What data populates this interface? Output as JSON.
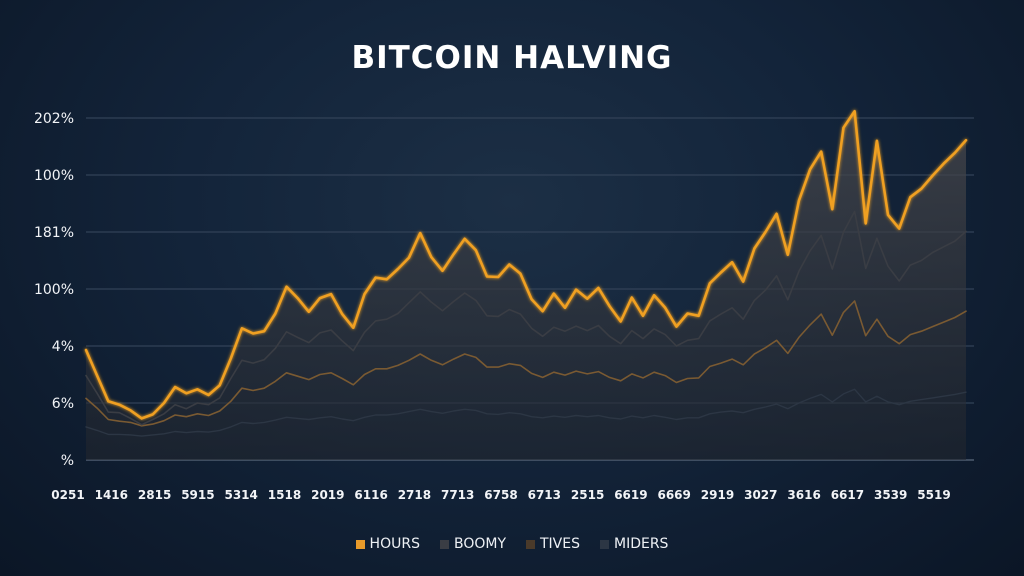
{
  "chart_data": {
    "type": "area",
    "title": "BITCOIN HALVING",
    "xlabel": "",
    "ylabel": "",
    "y_ticks": [
      "202%",
      "100%",
      "181%",
      "100%",
      "4%",
      "6%",
      "%"
    ],
    "x_ticks": [
      "0251",
      "1416",
      "2815",
      "5915",
      "5314",
      "1518",
      "2019",
      "6116",
      "2718",
      "7713",
      "6758",
      "6713",
      "2515",
      "6619",
      "6669",
      "2919",
      "3027",
      "3616",
      "6617",
      "3539",
      "5519"
    ],
    "ylim": [
      0,
      6
    ],
    "grid": true,
    "legend_position": "bottom",
    "x": [
      0,
      1,
      2,
      3,
      4,
      5,
      6,
      7,
      8,
      9,
      10,
      11,
      12,
      13,
      14,
      15,
      16,
      17,
      18,
      19,
      20,
      21,
      22,
      23,
      24,
      25,
      26,
      27,
      28,
      29,
      30,
      31,
      32,
      33,
      34,
      35,
      36,
      37,
      38,
      39,
      40,
      41,
      42,
      43,
      44,
      45,
      46,
      47,
      48,
      49,
      50,
      51,
      52,
      53,
      54,
      55,
      56,
      57,
      58,
      59,
      60,
      61,
      62,
      63,
      64,
      65,
      66,
      67,
      68,
      69,
      70,
      71,
      72,
      73,
      74,
      75,
      76,
      77,
      78,
      79
    ],
    "series": [
      {
        "name": "HOURS",
        "color": "#f0a020",
        "values": [
          1.93,
          1.48,
          1.03,
          0.97,
          0.87,
          0.73,
          0.8,
          1.0,
          1.28,
          1.17,
          1.24,
          1.14,
          1.31,
          1.78,
          2.31,
          2.22,
          2.26,
          2.57,
          3.04,
          2.84,
          2.6,
          2.84,
          2.91,
          2.56,
          2.32,
          2.91,
          3.2,
          3.17,
          3.35,
          3.55,
          3.98,
          3.56,
          3.32,
          3.61,
          3.88,
          3.68,
          3.22,
          3.21,
          3.43,
          3.27,
          2.82,
          2.61,
          2.92,
          2.67,
          2.99,
          2.83,
          3.02,
          2.7,
          2.43,
          2.85,
          2.53,
          2.89,
          2.67,
          2.34,
          2.57,
          2.53,
          3.1,
          3.29,
          3.47,
          3.13,
          3.71,
          4.0,
          4.32,
          3.6,
          4.55,
          5.1,
          5.41,
          4.4,
          5.83,
          6.12,
          4.15,
          5.6,
          4.3,
          4.06,
          4.61,
          4.76,
          4.99,
          5.2,
          5.39,
          5.61
        ]
      },
      {
        "name": "BOOMY",
        "color": "#3a3d44",
        "values": [
          1.48,
          1.17,
          0.84,
          0.83,
          0.73,
          0.62,
          0.71,
          0.81,
          0.97,
          0.9,
          1.0,
          0.97,
          1.09,
          1.43,
          1.75,
          1.7,
          1.76,
          1.96,
          2.25,
          2.15,
          2.06,
          2.23,
          2.28,
          2.09,
          1.92,
          2.24,
          2.44,
          2.47,
          2.57,
          2.76,
          2.95,
          2.77,
          2.62,
          2.78,
          2.93,
          2.8,
          2.53,
          2.52,
          2.64,
          2.56,
          2.31,
          2.17,
          2.33,
          2.26,
          2.35,
          2.27,
          2.36,
          2.17,
          2.04,
          2.27,
          2.13,
          2.3,
          2.2,
          2.0,
          2.1,
          2.13,
          2.44,
          2.56,
          2.67,
          2.47,
          2.8,
          2.98,
          3.23,
          2.81,
          3.31,
          3.67,
          3.94,
          3.35,
          4.0,
          4.36,
          3.36,
          3.89,
          3.4,
          3.14,
          3.42,
          3.5,
          3.64,
          3.74,
          3.84,
          4.01
        ]
      },
      {
        "name": "TIVES",
        "color": "#7a5a32",
        "values": [
          1.08,
          0.91,
          0.71,
          0.68,
          0.66,
          0.6,
          0.63,
          0.69,
          0.79,
          0.76,
          0.81,
          0.78,
          0.86,
          1.03,
          1.26,
          1.22,
          1.26,
          1.38,
          1.53,
          1.47,
          1.41,
          1.5,
          1.53,
          1.43,
          1.32,
          1.5,
          1.6,
          1.6,
          1.66,
          1.75,
          1.86,
          1.75,
          1.67,
          1.77,
          1.86,
          1.8,
          1.63,
          1.63,
          1.69,
          1.66,
          1.52,
          1.45,
          1.54,
          1.49,
          1.56,
          1.51,
          1.55,
          1.45,
          1.39,
          1.51,
          1.44,
          1.54,
          1.48,
          1.36,
          1.43,
          1.44,
          1.64,
          1.7,
          1.77,
          1.67,
          1.86,
          1.97,
          2.1,
          1.87,
          2.15,
          2.37,
          2.56,
          2.19,
          2.59,
          2.79,
          2.18,
          2.47,
          2.17,
          2.04,
          2.2,
          2.26,
          2.34,
          2.42,
          2.5,
          2.61
        ]
      },
      {
        "name": "MIDERS",
        "color": "#2c3644",
        "values": [
          0.58,
          0.52,
          0.45,
          0.45,
          0.44,
          0.42,
          0.44,
          0.46,
          0.5,
          0.48,
          0.5,
          0.49,
          0.52,
          0.58,
          0.66,
          0.64,
          0.66,
          0.7,
          0.75,
          0.73,
          0.71,
          0.74,
          0.76,
          0.72,
          0.69,
          0.75,
          0.79,
          0.79,
          0.81,
          0.85,
          0.89,
          0.85,
          0.82,
          0.86,
          0.89,
          0.87,
          0.81,
          0.8,
          0.83,
          0.81,
          0.76,
          0.74,
          0.77,
          0.75,
          0.78,
          0.76,
          0.78,
          0.74,
          0.72,
          0.77,
          0.74,
          0.78,
          0.75,
          0.71,
          0.74,
          0.74,
          0.81,
          0.84,
          0.86,
          0.83,
          0.89,
          0.93,
          0.98,
          0.9,
          1.0,
          1.08,
          1.15,
          1.02,
          1.16,
          1.24,
          1.02,
          1.12,
          1.02,
          0.97,
          1.03,
          1.06,
          1.09,
          1.12,
          1.15,
          1.19
        ]
      }
    ]
  },
  "legend": [
    {
      "label": "HOURS",
      "color": "#e89a2a"
    },
    {
      "label": "BOOMY",
      "color": "#3a3d44"
    },
    {
      "label": "TIVES",
      "color": "#4a3a2a"
    },
    {
      "label": "MIDERS",
      "color": "#2c3644"
    }
  ]
}
